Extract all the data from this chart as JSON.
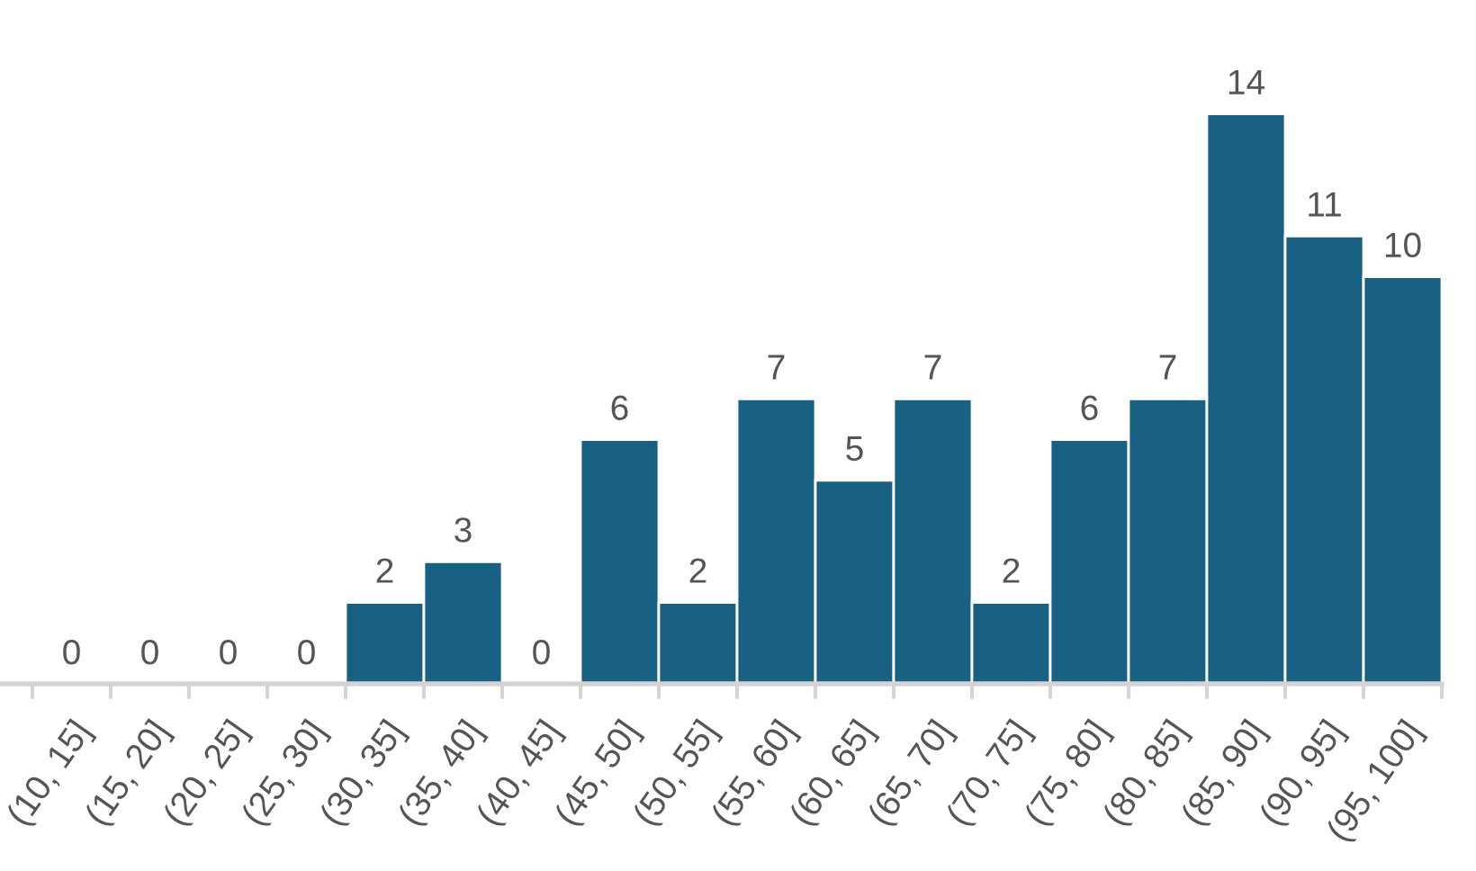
{
  "chart_data": {
    "type": "bar",
    "categories": [
      "(10, 15]",
      "(15, 20]",
      "(20, 25]",
      "(25, 30]",
      "(30, 35]",
      "(35, 40]",
      "(40, 45]",
      "(45, 50]",
      "(50, 55]",
      "(55, 60]",
      "(60, 65]",
      "(65, 70]",
      "(70, 75]",
      "(75, 80]",
      "(80, 85]",
      "(85, 90]",
      "(90, 95]",
      "(95, 100]"
    ],
    "values": [
      0,
      0,
      0,
      0,
      2,
      3,
      0,
      6,
      2,
      7,
      5,
      7,
      2,
      6,
      7,
      14,
      11,
      10
    ],
    "color": "#186182",
    "data_labels": true,
    "grid": false,
    "tick_labels": "x"
  }
}
